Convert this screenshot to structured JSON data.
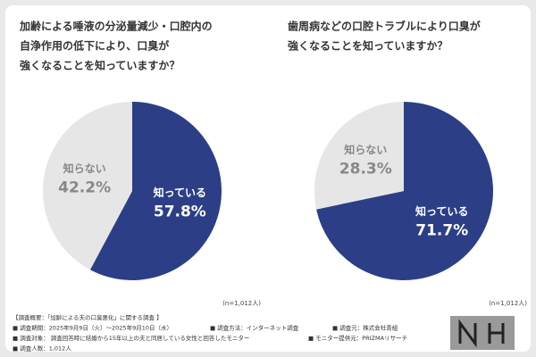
{
  "chart_data": [
    {
      "type": "pie",
      "title": [
        "加齢による唾液の分泌量減少・口腔内の",
        "自浄作用の低下により、口臭が",
        "強くなることを知っていますか？"
      ],
      "categories": [
        "知っている",
        "知らない"
      ],
      "values": [
        57.8,
        42.2
      ],
      "value_labels": [
        "57.8%",
        "42.2%"
      ],
      "colors": [
        "#2c3f86",
        "#e6e6e6"
      ],
      "note": "(n=1,012人)"
    },
    {
      "type": "pie",
      "title": [
        "歯周病などの口腔トラブルにより口臭が",
        "強くなることを知っていますか？"
      ],
      "categories": [
        "知っている",
        "知らない"
      ],
      "values": [
        71.7,
        28.3
      ],
      "value_labels": [
        "71.7%",
        "28.3%"
      ],
      "colors": [
        "#2c3f86",
        "#e6e6e6"
      ],
      "note": "(n=1,012人)"
    }
  ],
  "footer": [
    [
      "【調査概要：「加齢による夫の口臭悪化」に関する調査 】"
    ],
    [
      "■ 調査期間：2025年9月9日（火）～2025年9月10日（水）",
      "■ 調査方法：インターネット調査",
      "■ 調査元：株式会社青組"
    ],
    [
      "■ 調査対象： 調査回答時に結婚から15年以上の夫と同居している女性と回答したモニター",
      "■ モニター提供元：PRIZMAリサーチ"
    ],
    [
      "■ 調査人数：1,012人"
    ]
  ]
}
